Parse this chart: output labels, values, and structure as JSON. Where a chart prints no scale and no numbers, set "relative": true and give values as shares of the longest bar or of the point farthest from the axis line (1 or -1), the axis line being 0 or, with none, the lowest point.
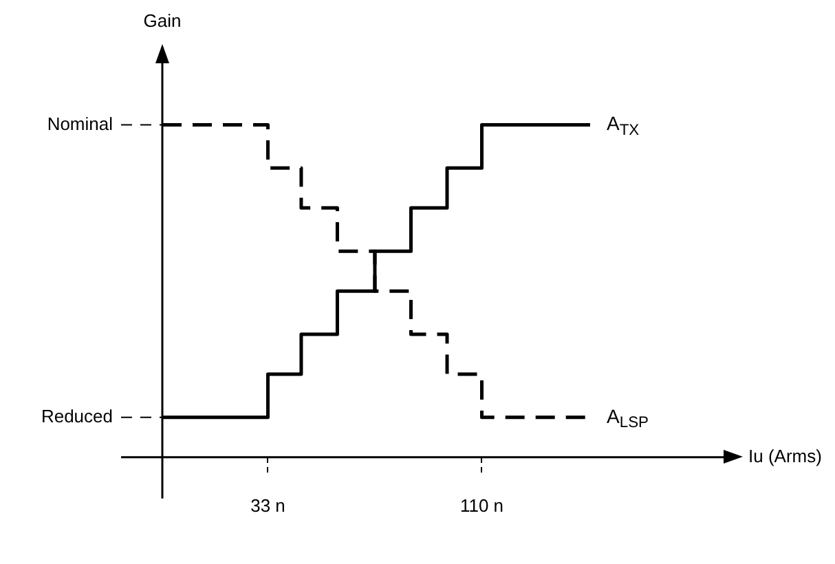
{
  "chart_data": {
    "type": "step",
    "relative": true,
    "xlabel": "Iu (Arms)",
    "x": [
      -5,
      33,
      45,
      58,
      71.5,
      84.5,
      97.5,
      110,
      149
    ],
    "series": [
      {
        "name": "A$_{TX}$",
        "color": "#000000",
        "line_style": "solid",
        "values": [
          0.12,
          0.25,
          0.37,
          0.5,
          0.62,
          0.75,
          0.87,
          1,
          1
        ]
      },
      {
        "name": "A$_{LSP}$",
        "color": "#000000",
        "line_style": "dashed",
        "values": [
          1,
          0.87,
          0.75,
          0.62,
          0.5,
          0.37,
          0.25,
          0.12,
          0.12
        ]
      }
    ],
    "xlim": [
      -5,
      200
    ],
    "xticks": [
      {
        "value": 33,
        "label": "33 n"
      },
      {
        "value": 110,
        "label": "110 n"
      }
    ],
    "annotations": [
      "Gain",
      "Nominal",
      "Reduced"
    ]
  }
}
